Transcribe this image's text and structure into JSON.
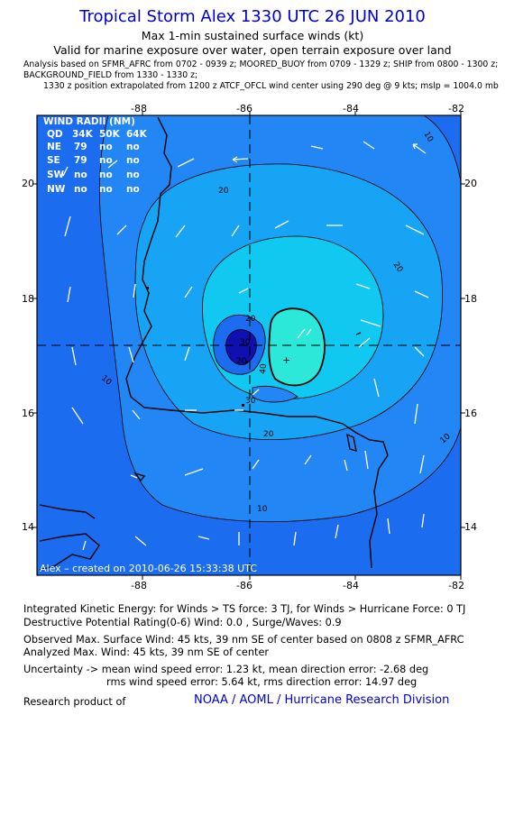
{
  "header": {
    "title": "Tropical Storm Alex 1330 UTC 26 JUN 2010",
    "subtitle1": "Max 1-min sustained surface winds (kt)",
    "subtitle2": "Valid for marine exposure over water, open terrain exposure over land",
    "analysis_line1": "Analysis based on  SFMR_AFRC from 0702 - 0939 z;  MOORED_BUOY from 0709 - 1329 z;  SHIP from 0800 - 1300 z;",
    "analysis_line2": "BACKGROUND_FIELD from 1330 - 1330 z;",
    "analysis_line3": "1330 z position extrapolated from 1200 z ATCF_OFCL wind center using 290 deg @ 9 kts; mslp = 1004.0 mb"
  },
  "map": {
    "x_ticks": [
      "-88",
      "-86",
      "-84",
      "-82"
    ],
    "y_ticks": [
      "20",
      "18",
      "16",
      "14"
    ],
    "contour_labels": [
      "20",
      "20",
      "10",
      "20",
      "30",
      "40",
      "20",
      "10",
      "10",
      "10",
      "20",
      "30"
    ],
    "credit": "Alex  –  created on 2010-06-26 15:33:38 UTC",
    "colors": {
      "outer": "#1c6cf0",
      "band10": "#2286f4",
      "band20": "#18a4f4",
      "band30": "#10c8f0",
      "band40": "#2ce8d8",
      "low_dark": "#1010b0",
      "frame": "#000000",
      "arrows": "#ffffff"
    }
  },
  "wind_radii": {
    "title": "WIND RADII (NM)",
    "headers": [
      "QD",
      "34K",
      "50K",
      "64K"
    ],
    "rows": [
      [
        "NE",
        "79",
        "no",
        "no"
      ],
      [
        "SE",
        "79",
        "no",
        "no"
      ],
      [
        "SW",
        "no",
        "no",
        "no"
      ],
      [
        "NW",
        "no",
        "no",
        "no"
      ]
    ]
  },
  "footer": {
    "ike": "Integrated Kinetic Energy:  for Winds > TS force: 3 TJ,  for Winds > Hurricane Force: 0 TJ",
    "dpr": "Destructive Potential Rating(0-6)   Wind: 0.0 , Surge/Waves: 0.9",
    "obs_max": "Observed Max. Surface Wind: 45 kts, 39 nm SE of center based on 0808 z SFMR_AFRC",
    "ana_max": "Analyzed Max. Wind: 45 kts, 39 nm SE of center",
    "unc1": "Uncertainty -> mean wind speed error: 1.23 kt,   mean direction error:  -2.68 deg",
    "unc2": "rms wind speed error: 5.64 kt,   rms direction error: 14.97 deg",
    "research": "Research product of",
    "org": "NOAA / AOML / Hurricane Research Division"
  }
}
